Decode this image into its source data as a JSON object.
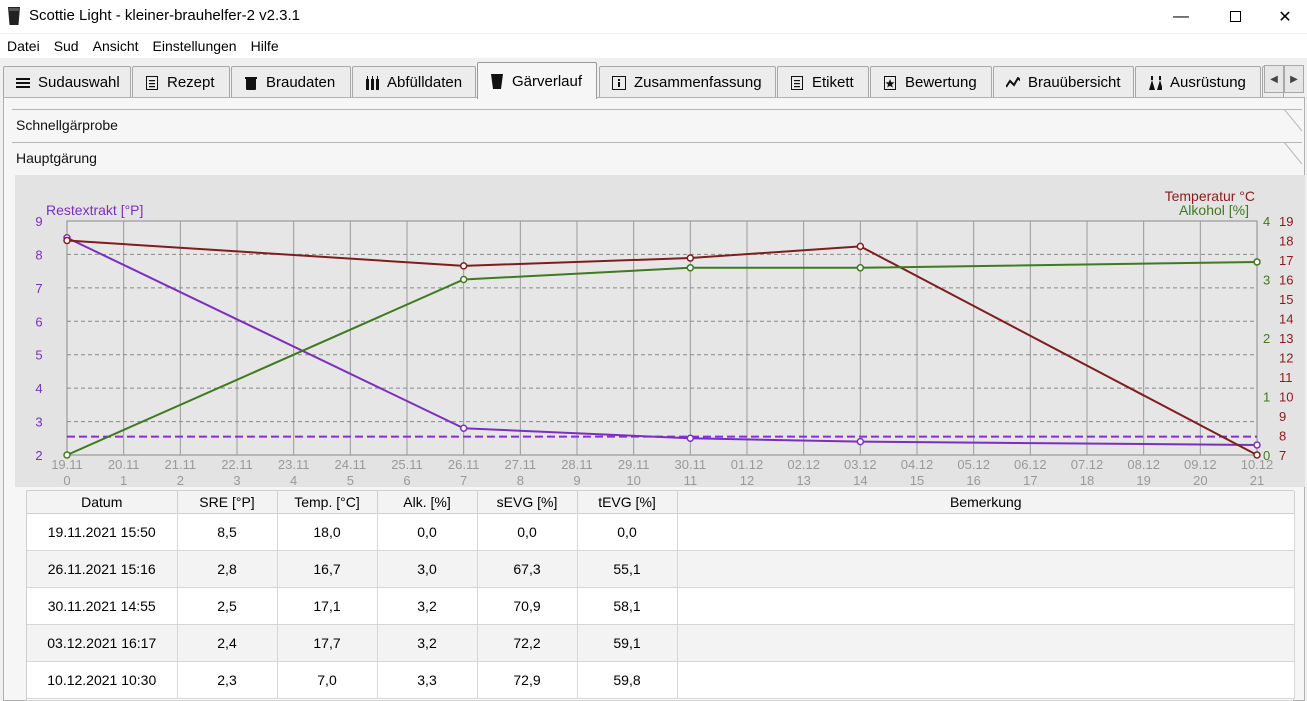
{
  "window": {
    "title": "Scottie Light - kleiner-brauhelfer-2 v2.3.1",
    "min": "—",
    "close": "✕"
  },
  "menu": [
    "Datei",
    "Sud",
    "Ansicht",
    "Einstellungen",
    "Hilfe"
  ],
  "tabs": [
    {
      "label": "Sudauswahl",
      "icon": "list-icon"
    },
    {
      "label": "Rezept",
      "icon": "document-icon"
    },
    {
      "label": "Braudaten",
      "icon": "kettle-icon"
    },
    {
      "label": "Abfülldaten",
      "icon": "bottles-icon"
    },
    {
      "label": "Gärverlauf",
      "icon": "glass-icon",
      "active": true
    },
    {
      "label": "Zusammenfassung",
      "icon": "info-icon"
    },
    {
      "label": "Etikett",
      "icon": "label-icon"
    },
    {
      "label": "Bewertung",
      "icon": "star-icon"
    },
    {
      "label": "Brauübersicht",
      "icon": "trend-icon"
    },
    {
      "label": "Ausrüstung",
      "icon": "equipment-icon"
    }
  ],
  "sections": {
    "schnell": "Schnellgärprobe",
    "haupt": "Hauptgärung"
  },
  "chart_data": {
    "type": "line",
    "x_dates": [
      "19.11",
      "20.11",
      "21.11",
      "22.11",
      "23.11",
      "24.11",
      "25.11",
      "26.11",
      "27.11",
      "28.11",
      "29.11",
      "30.11",
      "01.12",
      "02.12",
      "03.12",
      "04.12",
      "05.12",
      "06.12",
      "07.12",
      "08.12",
      "09.12",
      "10.12"
    ],
    "x_days": [
      "0",
      "1",
      "2",
      "3",
      "4",
      "5",
      "6",
      "7",
      "8",
      "9",
      "10",
      "11",
      "12",
      "13",
      "14",
      "15",
      "16",
      "17",
      "18",
      "19",
      "20",
      "21"
    ],
    "left_axis": {
      "label": "Restextrakt [°P]",
      "min": 2,
      "max": 9,
      "ticks": [
        "2",
        "3",
        "4",
        "5",
        "6",
        "7",
        "8",
        "9"
      ],
      "color": "#7b2fbe"
    },
    "right_axis_temp": {
      "label": "Temperatur °C",
      "min": 7,
      "max": 19,
      "ticks": [
        "7",
        "8",
        "9",
        "10",
        "11",
        "12",
        "13",
        "14",
        "15",
        "16",
        "17",
        "18",
        "19"
      ],
      "color": "#8b1a1a"
    },
    "right_axis_alk": {
      "label": "Alkohol [%]",
      "min": 0,
      "max": 4,
      "ticks": [
        "0",
        "1",
        "2",
        "3",
        "4"
      ],
      "color": "#3e7a1e"
    },
    "series": [
      {
        "name": "Restextrakt [°P]",
        "axis": "left",
        "color": "#7b2fbe",
        "x": [
          0,
          7,
          11,
          14,
          21
        ],
        "y": [
          8.5,
          2.8,
          2.5,
          2.4,
          2.3
        ]
      },
      {
        "name": "Temperatur °C",
        "axis": "temp",
        "color": "#7e1d1d",
        "x": [
          0,
          7,
          11,
          14,
          21
        ],
        "y": [
          18.0,
          16.7,
          17.1,
          17.7,
          7.0
        ]
      },
      {
        "name": "Alkohol [%]",
        "axis": "alk",
        "color": "#3e7a1e",
        "x": [
          0,
          7,
          11,
          14,
          21
        ],
        "y": [
          0.0,
          3.0,
          3.2,
          3.2,
          3.3
        ]
      }
    ],
    "reference_line": {
      "axis": "left",
      "y": 2.55,
      "color": "#8a2be2",
      "style": "dashed"
    },
    "grid": true
  },
  "table": {
    "headers": [
      "Datum",
      "SRE [°P]",
      "Temp. [°C]",
      "Alk. [%]",
      "sEVG [%]",
      "tEVG [%]",
      "Bemerkung"
    ],
    "rows": [
      [
        "19.11.2021 15:50",
        "8,5",
        "18,0",
        "0,0",
        "0,0",
        "0,0",
        ""
      ],
      [
        "26.11.2021 15:16",
        "2,8",
        "16,7",
        "3,0",
        "67,3",
        "55,1",
        ""
      ],
      [
        "30.11.2021 14:55",
        "2,5",
        "17,1",
        "3,2",
        "70,9",
        "58,1",
        ""
      ],
      [
        "03.12.2021 16:17",
        "2,4",
        "17,7",
        "3,2",
        "72,2",
        "59,1",
        ""
      ],
      [
        "10.12.2021 10:30",
        "2,3",
        "7,0",
        "3,3",
        "72,9",
        "59,8",
        ""
      ]
    ]
  }
}
